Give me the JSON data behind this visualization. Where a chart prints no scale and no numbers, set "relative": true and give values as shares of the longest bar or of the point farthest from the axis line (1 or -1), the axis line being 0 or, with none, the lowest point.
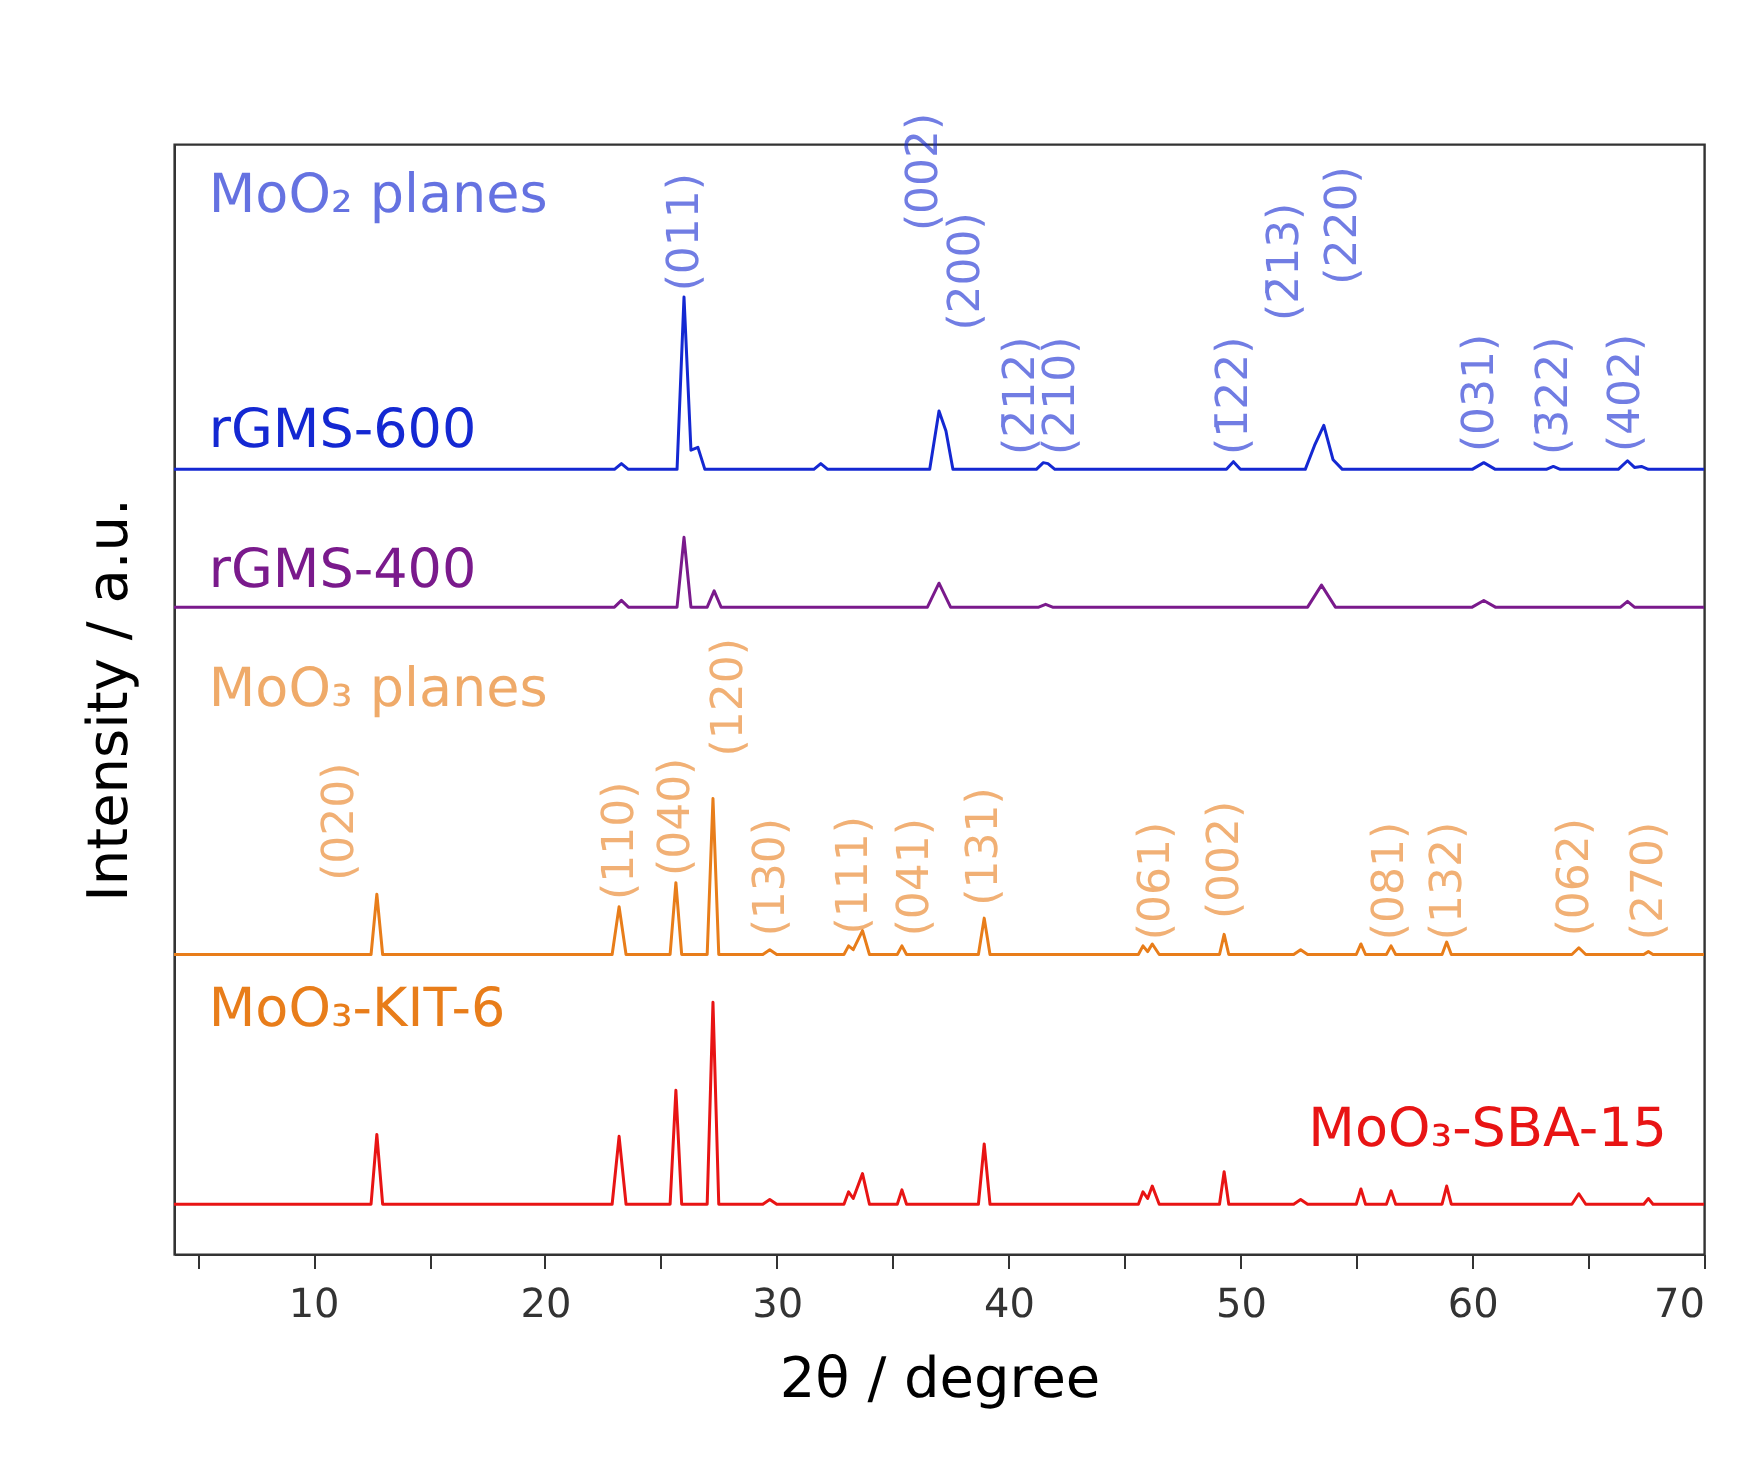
{
  "chart_data": {
    "type": "line",
    "relative": true,
    "xlabel": "2θ / degree",
    "ylabel": "Intensity / a.u.",
    "xlim": [
      4,
      70
    ],
    "xticks": [
      {
        "value": 5,
        "label": null
      },
      10,
      {
        "value": 15,
        "label": null
      },
      20,
      {
        "value": 25,
        "label": null
      },
      30,
      {
        "value": 35,
        "label": null
      },
      40,
      {
        "value": 45,
        "label": null
      },
      50,
      {
        "value": 55,
        "label": null
      },
      60,
      {
        "value": 65,
        "label": null
      },
      70
    ],
    "grid": false,
    "marker": "none",
    "line_style": "solid",
    "series": [
      {
        "name": "rGMS-600",
        "color": "#1428d2",
        "x": [
          4,
          23.0,
          23.3,
          23.6,
          25.7,
          26.0,
          26.3,
          26.6,
          26.9,
          31.6,
          31.9,
          32.2,
          36.6,
          37.0,
          37.3,
          37.6,
          41.2,
          41.5,
          41.7,
          42.0,
          49.4,
          49.7,
          50.0,
          52.8,
          53.2,
          53.6,
          54.0,
          54.4,
          60.0,
          60.5,
          61.0,
          63.2,
          63.5,
          63.8,
          66.3,
          66.7,
          67.0,
          67.3,
          67.6,
          70
        ],
        "values": [
          0.82,
          0.82,
          0.826,
          0.82,
          0.82,
          1.0,
          0.84,
          0.843,
          0.82,
          0.82,
          0.826,
          0.82,
          0.82,
          0.881,
          0.86,
          0.82,
          0.82,
          0.827,
          0.826,
          0.82,
          0.82,
          0.828,
          0.82,
          0.82,
          0.845,
          0.866,
          0.83,
          0.82,
          0.82,
          0.827,
          0.82,
          0.82,
          0.823,
          0.82,
          0.82,
          0.829,
          0.822,
          0.823,
          0.82,
          0.82
        ]
      },
      {
        "name": "rGMS-400",
        "color": "#7a1a8c",
        "x": [
          4,
          23.0,
          23.3,
          23.6,
          25.7,
          26.0,
          26.3,
          27.0,
          27.3,
          27.6,
          36.5,
          37.0,
          37.5,
          41.3,
          41.6,
          41.9,
          52.9,
          53.5,
          54.1,
          60.0,
          60.5,
          61.0,
          66.4,
          66.7,
          67.0,
          70
        ],
        "values": [
          0.676,
          0.676,
          0.683,
          0.676,
          0.676,
          0.749,
          0.676,
          0.676,
          0.693,
          0.676,
          0.676,
          0.701,
          0.676,
          0.676,
          0.679,
          0.676,
          0.676,
          0.699,
          0.676,
          0.676,
          0.683,
          0.676,
          0.676,
          0.682,
          0.676,
          0.676
        ]
      },
      {
        "name": "MoO₃-KIT-6",
        "color": "#e87d1a",
        "x": [
          4,
          12.5,
          12.75,
          13.0,
          22.9,
          23.2,
          23.5,
          25.4,
          25.65,
          25.9,
          27.0,
          27.25,
          27.5,
          29.4,
          29.7,
          30.0,
          32.9,
          33.1,
          33.3,
          33.7,
          34.0,
          35.2,
          35.4,
          35.6,
          38.7,
          38.95,
          39.2,
          45.6,
          45.8,
          46.0,
          46.2,
          46.5,
          49.1,
          49.3,
          49.5,
          52.3,
          52.6,
          52.9,
          55.0,
          55.2,
          55.4,
          56.3,
          56.5,
          56.7,
          58.7,
          58.9,
          59.1,
          64.3,
          64.6,
          64.9,
          67.4,
          67.6,
          67.8,
          70
        ],
        "values": [
          0.313,
          0.313,
          0.376,
          0.313,
          0.313,
          0.363,
          0.313,
          0.313,
          0.388,
          0.313,
          0.313,
          0.476,
          0.313,
          0.313,
          0.318,
          0.313,
          0.313,
          0.322,
          0.318,
          0.338,
          0.313,
          0.313,
          0.322,
          0.313,
          0.313,
          0.351,
          0.313,
          0.313,
          0.322,
          0.316,
          0.324,
          0.313,
          0.313,
          0.334,
          0.313,
          0.313,
          0.318,
          0.313,
          0.313,
          0.324,
          0.313,
          0.313,
          0.322,
          0.313,
          0.313,
          0.326,
          0.313,
          0.313,
          0.32,
          0.313,
          0.313,
          0.316,
          0.313,
          0.313
        ]
      },
      {
        "name": "MoO₃-SBA-15",
        "color": "#e81414",
        "x": [
          4,
          12.5,
          12.75,
          13.0,
          22.9,
          23.2,
          23.5,
          25.4,
          25.65,
          25.9,
          27.0,
          27.25,
          27.5,
          29.4,
          29.7,
          30.0,
          32.9,
          33.1,
          33.3,
          33.7,
          34.0,
          35.2,
          35.4,
          35.6,
          38.7,
          38.95,
          39.2,
          45.6,
          45.8,
          46.0,
          46.2,
          46.5,
          49.1,
          49.3,
          49.5,
          52.3,
          52.6,
          52.9,
          55.0,
          55.2,
          55.4,
          56.3,
          56.5,
          56.7,
          58.7,
          58.9,
          59.1,
          64.3,
          64.6,
          64.9,
          67.4,
          67.6,
          67.8,
          70
        ],
        "values": [
          0.052,
          0.052,
          0.125,
          0.052,
          0.052,
          0.123,
          0.052,
          0.052,
          0.171,
          0.052,
          0.052,
          0.263,
          0.052,
          0.052,
          0.057,
          0.052,
          0.052,
          0.065,
          0.058,
          0.084,
          0.052,
          0.052,
          0.067,
          0.052,
          0.052,
          0.115,
          0.052,
          0.052,
          0.065,
          0.058,
          0.071,
          0.052,
          0.052,
          0.086,
          0.052,
          0.052,
          0.057,
          0.052,
          0.052,
          0.068,
          0.052,
          0.052,
          0.066,
          0.052,
          0.052,
          0.071,
          0.052,
          0.052,
          0.063,
          0.052,
          0.052,
          0.058,
          0.052,
          0.052
        ]
      }
    ],
    "annotations": [
      "MoO₂ planes",
      "(011)",
      "(002)",
      "(200)",
      "(2̄12)",
      "(210)",
      "(1̄22)",
      "(2̄13)",
      "(220)",
      "(031)",
      "(3̄22)",
      "(402)",
      "MoO₃ planes",
      "(020)",
      "(110)",
      "(040)",
      "(120)",
      "(130)",
      "(111)",
      "(041)",
      "(131)",
      "(061)",
      "(002)",
      "(081)",
      "(132)",
      "(062)",
      "(270)"
    ]
  }
}
